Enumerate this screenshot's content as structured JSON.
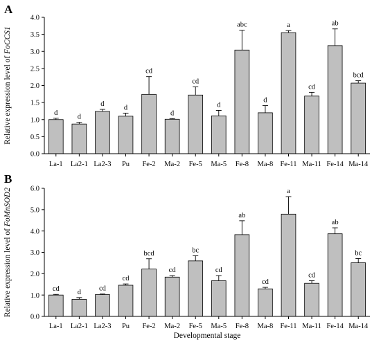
{
  "chart_data": [
    {
      "type": "bar",
      "panel_label": "A",
      "categories": [
        "La-1",
        "La2-1",
        "La2-3",
        "Pu",
        "Fe-2",
        "Ma-2",
        "Fe-5",
        "Ma-5",
        "Fe-8",
        "Ma-8",
        "Fe-11",
        "Ma-11",
        "Fe-14",
        "Ma-14"
      ],
      "values": [
        1.0,
        0.87,
        1.24,
        1.1,
        1.74,
        1.01,
        1.72,
        1.11,
        3.04,
        1.2,
        3.55,
        1.69,
        3.17,
        2.07
      ],
      "errors": [
        0.04,
        0.05,
        0.06,
        0.09,
        0.52,
        0.02,
        0.24,
        0.16,
        0.58,
        0.21,
        0.06,
        0.11,
        0.49,
        0.07
      ],
      "significance": [
        "d",
        "d",
        "d",
        "d",
        "cd",
        "d",
        "cd",
        "d",
        "abc",
        "d",
        "a",
        "cd",
        "ab",
        "bcd"
      ],
      "ylabel_prefix": "Relative expression level of ",
      "ylabel_gene": "FoCCS1",
      "xlabel": "",
      "ylim": [
        0,
        4.0
      ],
      "yticks": [
        "0.0",
        "0.5",
        "1.0",
        "1.5",
        "2.0",
        "2.5",
        "3.0",
        "3.5",
        "4.0"
      ],
      "bar_color": "#bfbfbf",
      "grid": false
    },
    {
      "type": "bar",
      "panel_label": "B",
      "categories": [
        "La-1",
        "La2-1",
        "La2-3",
        "Pu",
        "Fe-2",
        "Ma-2",
        "Fe-5",
        "Ma-5",
        "Fe-8",
        "Ma-8",
        "Fe-11",
        "Ma-11",
        "Fe-14",
        "Ma-14"
      ],
      "values": [
        1.0,
        0.8,
        1.02,
        1.46,
        2.22,
        1.84,
        2.6,
        1.67,
        3.83,
        1.29,
        4.79,
        1.55,
        3.87,
        2.51
      ],
      "errors": [
        0.03,
        0.08,
        0.03,
        0.06,
        0.48,
        0.07,
        0.24,
        0.24,
        0.65,
        0.07,
        0.82,
        0.12,
        0.28,
        0.2
      ],
      "significance": [
        "cd",
        "d",
        "cd",
        "cd",
        "bcd",
        "cd",
        "bc",
        "cd",
        "ab",
        "cd",
        "a",
        "cd",
        "ab",
        "bc"
      ],
      "ylabel_prefix": "Relative expression level of ",
      "ylabel_gene": "FoMnSOD2",
      "xlabel": "Developmental stage",
      "ylim": [
        0,
        6.0
      ],
      "yticks": [
        "0.0",
        "1.0",
        "2.0",
        "3.0",
        "4.0",
        "5.0",
        "6.0"
      ],
      "bar_color": "#bfbfbf",
      "grid": false
    }
  ]
}
